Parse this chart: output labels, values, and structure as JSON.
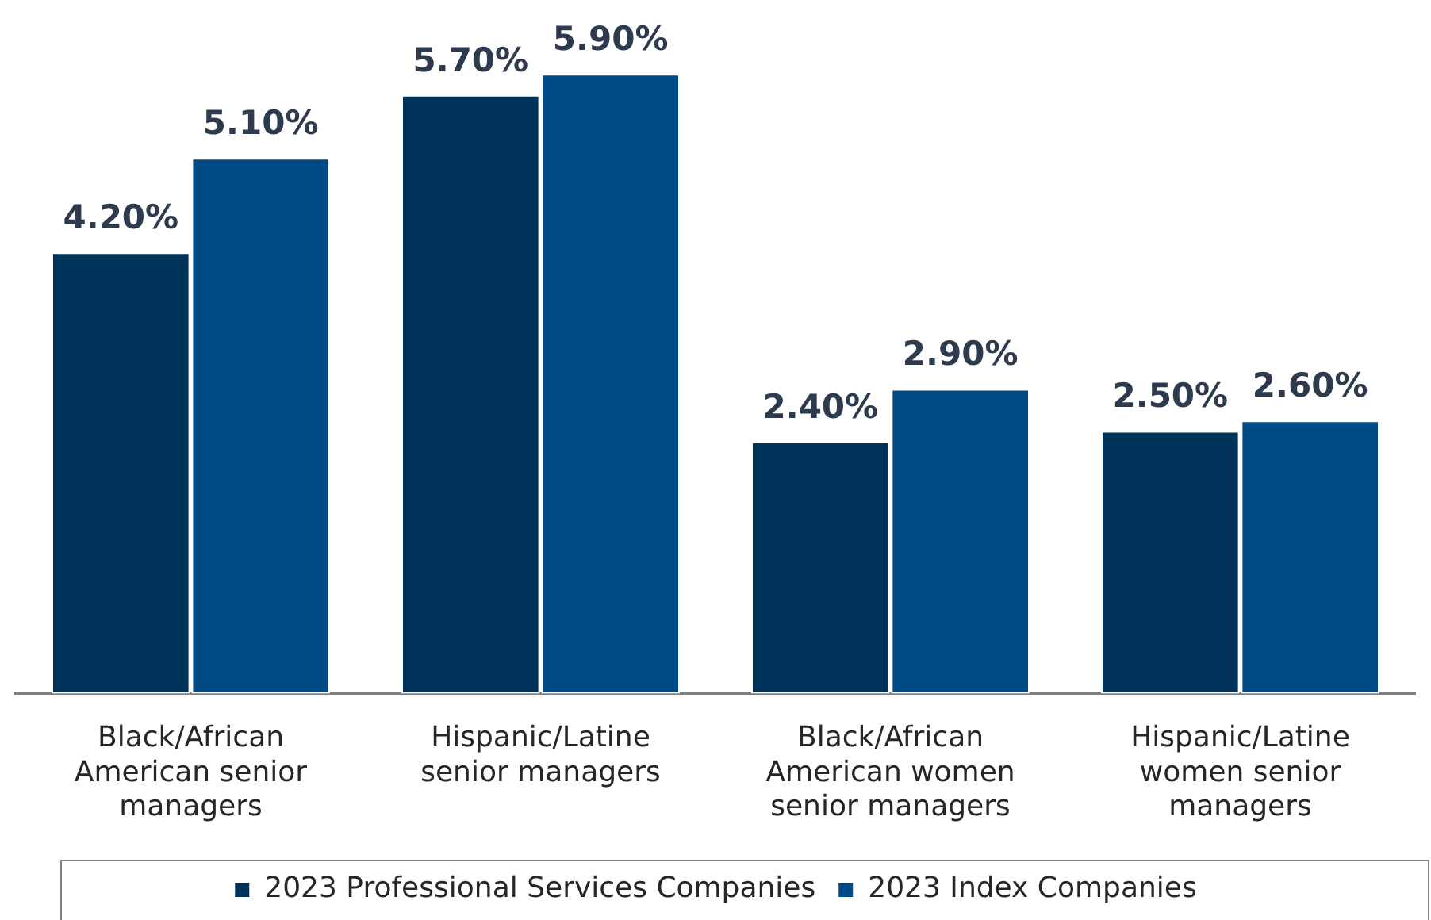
{
  "chart_data": {
    "type": "bar",
    "categories": [
      "Black/African American senior managers",
      "Hispanic/Latine senior managers",
      "Black/African American women senior managers",
      "Hispanic/Latine women senior managers"
    ],
    "series": [
      {
        "name": "2023 Professional Services Companies",
        "color": "#003359",
        "values": [
          4.2,
          5.7,
          2.4,
          2.5
        ],
        "value_labels": [
          "4.20%",
          "5.70%",
          "2.40%",
          "2.50%"
        ]
      },
      {
        "name": "2023 Index Companies",
        "color": "#004a86",
        "values": [
          5.1,
          5.9,
          2.9,
          2.6
        ],
        "value_labels": [
          "5.10%",
          "5.90%",
          "2.90%",
          "2.60%"
        ]
      }
    ],
    "legend": "bottom",
    "grid": false,
    "tick_labels": "x"
  }
}
